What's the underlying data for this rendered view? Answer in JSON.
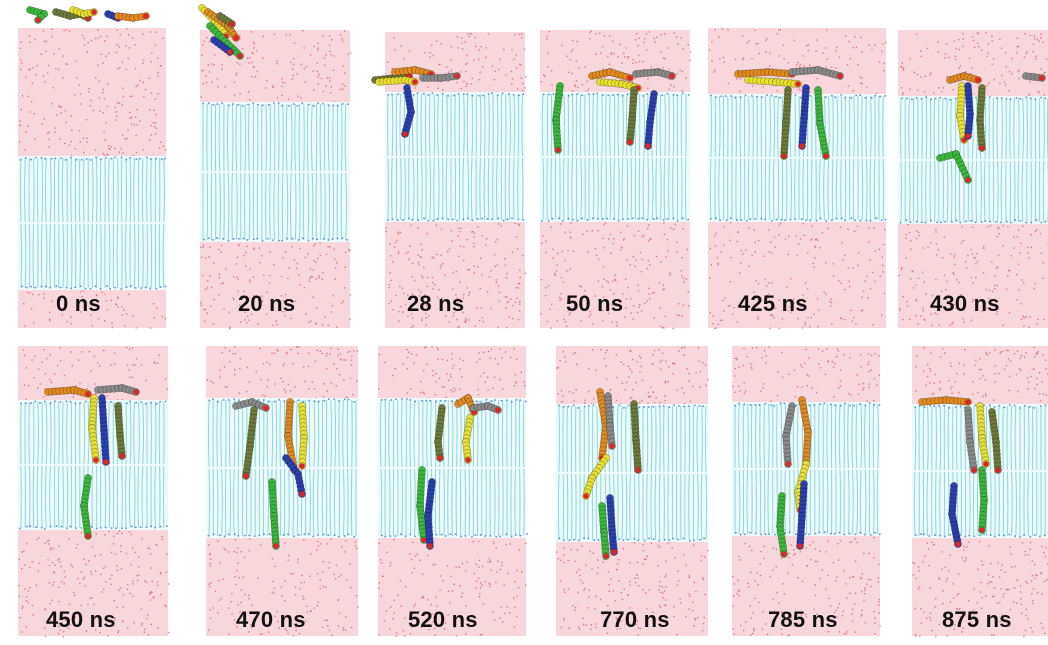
{
  "figure": {
    "time_labels": [
      "0 ns",
      "20 ns",
      "28 ns",
      "50 ns",
      "425 ns",
      "430 ns",
      "450 ns",
      "470 ns",
      "520 ns",
      "770 ns",
      "785 ns",
      "875 ns"
    ]
  },
  "colors": {
    "water": "#e0566a",
    "lipid": "#7fd6dc",
    "headgroup": "#5a8fd0",
    "peptides": {
      "green": "#3bb83b",
      "blue": "#2b3fb0",
      "yellow": "#e8e030",
      "orange": "#e08a20",
      "olive": "#6e7a3a",
      "gray": "#8a8a8a",
      "charge": "#d8262a"
    }
  }
}
